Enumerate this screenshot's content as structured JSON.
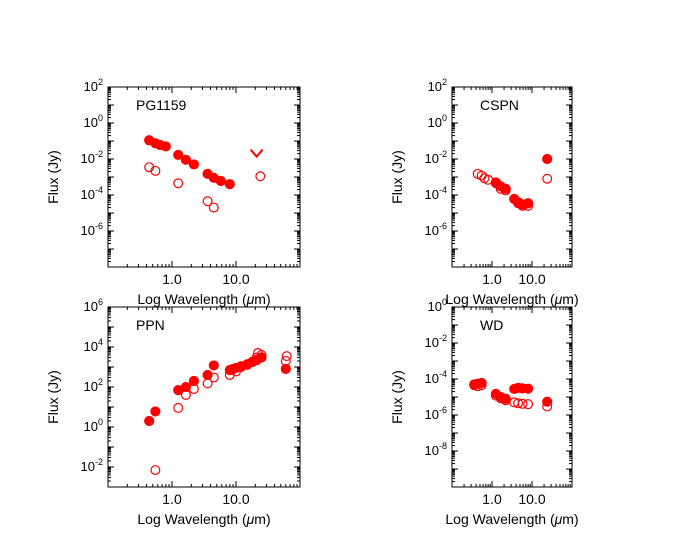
{
  "figure": {
    "filled_marker": "filled red circle",
    "open_marker": "open red circle",
    "marker_color": "#ff0000"
  },
  "chart_data": [
    {
      "type": "scatter",
      "title": "PG1159",
      "xlabel_main": "Log Wavelength (",
      "xlabel_mu": "μ",
      "xlabel_unit": "m)",
      "ylabel": "Flux (Jy)",
      "x_scale": "log",
      "y_scale": "log",
      "xlim": [
        0.1,
        100
      ],
      "ylim_exp": [
        -8,
        2
      ],
      "x_tick_labels": [
        {
          "value": 1,
          "label": "1.0"
        },
        {
          "value": 10,
          "label": "10.0"
        }
      ],
      "y_tick_exps": [
        2,
        0,
        -2,
        -4,
        -6
      ],
      "series": [
        {
          "name": "filled",
          "style": "filled",
          "points": [
            [
              0.44,
              0.11
            ],
            [
              0.55,
              0.075
            ],
            [
              0.65,
              0.06
            ],
            [
              0.8,
              0.05
            ],
            [
              1.25,
              0.017
            ],
            [
              1.65,
              0.009
            ],
            [
              2.2,
              0.005
            ],
            [
              3.6,
              0.0015
            ],
            [
              4.5,
              0.0009
            ],
            [
              5.8,
              0.0006
            ],
            [
              8.0,
              0.0004
            ]
          ]
        },
        {
          "name": "open",
          "style": "open",
          "points": [
            [
              0.44,
              0.0035
            ],
            [
              0.55,
              0.0022
            ],
            [
              1.25,
              0.00045
            ],
            [
              3.6,
              4.5e-05
            ],
            [
              4.5,
              2e-05
            ],
            [
              24,
              0.0011
            ]
          ]
        },
        {
          "name": "upper_limit",
          "style": "upper-limit",
          "points": [
            [
              21,
              0.02
            ]
          ]
        }
      ]
    },
    {
      "type": "scatter",
      "title": "CSPN",
      "xlabel_main": "Log Wavelength (",
      "xlabel_mu": "μ",
      "xlabel_unit": "m)",
      "ylabel": "Flux (Jy)",
      "x_scale": "log",
      "y_scale": "log",
      "xlim": [
        0.1,
        100
      ],
      "ylim_exp": [
        -8,
        2
      ],
      "x_tick_labels": [
        {
          "value": 1,
          "label": "1.0"
        },
        {
          "value": 10,
          "label": "10.0"
        }
      ],
      "y_tick_exps": [
        2,
        0,
        -2,
        -4,
        -6
      ],
      "series": [
        {
          "name": "filled",
          "style": "filled",
          "points": [
            [
              1.25,
              0.0005
            ],
            [
              1.65,
              0.0003
            ],
            [
              2.2,
              0.00022
            ],
            [
              3.6,
              6e-05
            ],
            [
              4.5,
              4e-05
            ],
            [
              5.8,
              3e-05
            ],
            [
              8.0,
              3.5e-05
            ],
            [
              24,
              0.01
            ]
          ]
        },
        {
          "name": "open",
          "style": "open",
          "points": [
            [
              0.44,
              0.0015
            ],
            [
              0.55,
              0.0012
            ],
            [
              0.65,
              0.00085
            ],
            [
              0.8,
              0.0007
            ],
            [
              1.25,
              0.00045
            ],
            [
              1.65,
              0.00022
            ],
            [
              2.2,
              0.00018
            ],
            [
              3.6,
              6e-05
            ],
            [
              4.5,
              3.5e-05
            ],
            [
              5.8,
              2.5e-05
            ],
            [
              8.0,
              2.5e-05
            ],
            [
              24,
              0.0008
            ]
          ]
        }
      ]
    },
    {
      "type": "scatter",
      "title": "PPN",
      "xlabel_main": "Log Wavelength (",
      "xlabel_mu": "μ",
      "xlabel_unit": "m)",
      "ylabel": "Flux (Jy)",
      "x_scale": "log",
      "y_scale": "log",
      "xlim": [
        0.1,
        100
      ],
      "ylim_exp": [
        -3,
        6
      ],
      "x_tick_labels": [
        {
          "value": 1,
          "label": "1.0"
        },
        {
          "value": 10,
          "label": "10.0"
        }
      ],
      "y_tick_exps": [
        6,
        4,
        2,
        0,
        -2
      ],
      "series": [
        {
          "name": "filled",
          "style": "filled",
          "points": [
            [
              0.44,
              2
            ],
            [
              0.55,
              6
            ],
            [
              1.25,
              70
            ],
            [
              1.65,
              100
            ],
            [
              2.2,
              200
            ],
            [
              3.6,
              400
            ],
            [
              4.5,
              1200
            ],
            [
              8,
              700
            ],
            [
              9,
              800
            ],
            [
              10,
              900
            ],
            [
              12,
              1100
            ],
            [
              15,
              1300
            ],
            [
              18,
              1800
            ],
            [
              21,
              2200
            ],
            [
              25,
              3000
            ],
            [
              60,
              800
            ]
          ]
        },
        {
          "name": "open",
          "style": "open",
          "points": [
            [
              0.55,
              0.007
            ],
            [
              1.25,
              9
            ],
            [
              1.65,
              40
            ],
            [
              2.2,
              80
            ],
            [
              3.6,
              150
            ],
            [
              4.5,
              300
            ],
            [
              8,
              400
            ],
            [
              10,
              600
            ],
            [
              12,
              1000
            ],
            [
              15,
              1400
            ],
            [
              18,
              1800
            ],
            [
              21,
              3000
            ],
            [
              22,
              5000
            ],
            [
              25,
              4000
            ],
            [
              60,
              2000
            ],
            [
              62,
              3500
            ]
          ]
        }
      ]
    },
    {
      "type": "scatter",
      "title": "WD",
      "xlabel_main": "Log Wavelength (",
      "xlabel_mu": "μ",
      "xlabel_unit": "m)",
      "ylabel": "Flux (Jy)",
      "x_scale": "log",
      "y_scale": "log",
      "xlim": [
        0.1,
        100
      ],
      "ylim_exp": [
        -10,
        0
      ],
      "x_tick_labels": [
        {
          "value": 1,
          "label": "1.0"
        },
        {
          "value": 10,
          "label": "10.0"
        }
      ],
      "y_tick_exps": [
        0,
        -2,
        -4,
        -6,
        -8
      ],
      "series": [
        {
          "name": "filled",
          "style": "filled",
          "points": [
            [
              0.36,
              5e-05
            ],
            [
              0.44,
              5.5e-05
            ],
            [
              0.55,
              6e-05
            ],
            [
              1.25,
              1.5e-05
            ],
            [
              1.65,
              1e-05
            ],
            [
              2.2,
              8e-06
            ],
            [
              3.6,
              2.8e-05
            ],
            [
              4.5,
              3.2e-05
            ],
            [
              5.8,
              3e-05
            ],
            [
              8.0,
              2.9e-05
            ],
            [
              24,
              5.5e-06
            ]
          ]
        },
        {
          "name": "open",
          "style": "open",
          "points": [
            [
              0.36,
              4.5e-05
            ],
            [
              0.44,
              4e-05
            ],
            [
              0.55,
              4.5e-05
            ],
            [
              1.25,
              1.2e-05
            ],
            [
              1.65,
              8.5e-06
            ],
            [
              2.2,
              6.5e-06
            ],
            [
              3.6,
              5e-06
            ],
            [
              4.5,
              4.5e-06
            ],
            [
              5.8,
              4.2e-06
            ],
            [
              8.0,
              4e-06
            ],
            [
              24,
              3e-06
            ]
          ]
        }
      ]
    }
  ]
}
